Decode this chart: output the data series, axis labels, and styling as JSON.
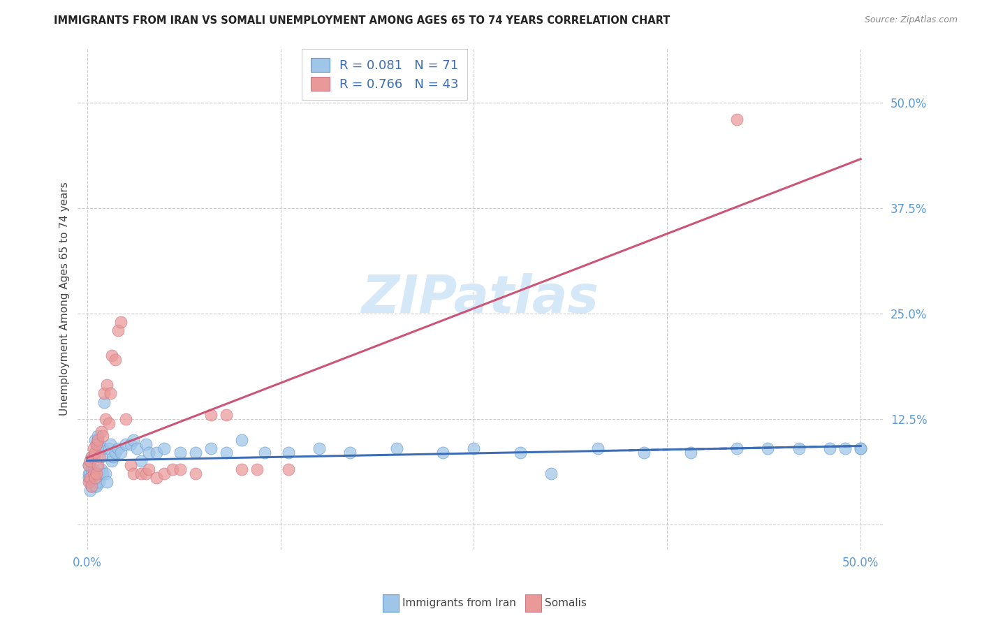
{
  "title": "IMMIGRANTS FROM IRAN VS SOMALI UNEMPLOYMENT AMONG AGES 65 TO 74 YEARS CORRELATION CHART",
  "source": "Source: ZipAtlas.com",
  "ylabel": "Unemployment Among Ages 65 to 74 years",
  "iran_label": "Immigrants from Iran",
  "somali_label": "Somalis",
  "iran_R": 0.081,
  "iran_N": 71,
  "somali_R": 0.766,
  "somali_N": 43,
  "iran_fill_color": "#9fc5e8",
  "somali_fill_color": "#ea9999",
  "iran_edge_color": "#6699cc",
  "somali_edge_color": "#cc7788",
  "iran_line_color": "#3d6eb5",
  "somali_line_color": "#cc5577",
  "watermark_color": "#d5e8f8",
  "tick_color": "#5b9bd5",
  "title_color": "#222222",
  "source_color": "#888888",
  "ylabel_color": "#444444",
  "legend_border_color": "#cccccc",
  "grid_color": "#cccccc",
  "iran_x": [
    0.001,
    0.001,
    0.001,
    0.002,
    0.002,
    0.002,
    0.002,
    0.003,
    0.003,
    0.003,
    0.003,
    0.004,
    0.004,
    0.004,
    0.005,
    0.005,
    0.005,
    0.006,
    0.006,
    0.006,
    0.007,
    0.007,
    0.008,
    0.008,
    0.009,
    0.009,
    0.01,
    0.01,
    0.011,
    0.012,
    0.013,
    0.014,
    0.015,
    0.016,
    0.017,
    0.018,
    0.02,
    0.022,
    0.025,
    0.028,
    0.03,
    0.032,
    0.035,
    0.038,
    0.04,
    0.045,
    0.05,
    0.06,
    0.07,
    0.08,
    0.09,
    0.1,
    0.115,
    0.13,
    0.15,
    0.17,
    0.2,
    0.23,
    0.25,
    0.28,
    0.3,
    0.33,
    0.36,
    0.39,
    0.42,
    0.44,
    0.46,
    0.48,
    0.49,
    0.5,
    0.5
  ],
  "iran_y": [
    0.055,
    0.06,
    0.07,
    0.04,
    0.05,
    0.06,
    0.075,
    0.045,
    0.055,
    0.065,
    0.08,
    0.05,
    0.065,
    0.08,
    0.045,
    0.06,
    0.1,
    0.045,
    0.06,
    0.095,
    0.055,
    0.105,
    0.05,
    0.095,
    0.065,
    0.08,
    0.06,
    0.09,
    0.145,
    0.06,
    0.05,
    0.09,
    0.095,
    0.075,
    0.08,
    0.085,
    0.09,
    0.085,
    0.095,
    0.095,
    0.1,
    0.09,
    0.075,
    0.095,
    0.085,
    0.085,
    0.09,
    0.085,
    0.085,
    0.09,
    0.085,
    0.1,
    0.085,
    0.085,
    0.09,
    0.085,
    0.09,
    0.085,
    0.09,
    0.085,
    0.06,
    0.09,
    0.085,
    0.085,
    0.09,
    0.09,
    0.09,
    0.09,
    0.09,
    0.09,
    0.09
  ],
  "somali_x": [
    0.001,
    0.001,
    0.002,
    0.002,
    0.003,
    0.003,
    0.004,
    0.004,
    0.005,
    0.005,
    0.006,
    0.006,
    0.007,
    0.007,
    0.008,
    0.009,
    0.01,
    0.011,
    0.012,
    0.013,
    0.014,
    0.015,
    0.016,
    0.018,
    0.02,
    0.022,
    0.025,
    0.028,
    0.03,
    0.035,
    0.038,
    0.04,
    0.045,
    0.05,
    0.055,
    0.06,
    0.07,
    0.08,
    0.09,
    0.1,
    0.11,
    0.13,
    0.42
  ],
  "somali_y": [
    0.05,
    0.07,
    0.055,
    0.075,
    0.045,
    0.08,
    0.06,
    0.09,
    0.055,
    0.085,
    0.06,
    0.095,
    0.07,
    0.1,
    0.08,
    0.11,
    0.105,
    0.155,
    0.125,
    0.165,
    0.12,
    0.155,
    0.2,
    0.195,
    0.23,
    0.24,
    0.125,
    0.07,
    0.06,
    0.06,
    0.06,
    0.065,
    0.055,
    0.06,
    0.065,
    0.065,
    0.06,
    0.13,
    0.13,
    0.065,
    0.065,
    0.065,
    0.48
  ],
  "xlim": [
    -0.006,
    0.515
  ],
  "ylim": [
    -0.03,
    0.565
  ],
  "xtick_vals": [
    0.0,
    0.125,
    0.25,
    0.375,
    0.5
  ],
  "xtick_labels": [
    "0.0%",
    "",
    "",
    "",
    "50.0%"
  ],
  "ytick_vals": [
    0.0,
    0.125,
    0.25,
    0.375,
    0.5
  ],
  "ytick_labels_right": [
    "",
    "12.5%",
    "25.0%",
    "37.5%",
    "50.0%"
  ]
}
